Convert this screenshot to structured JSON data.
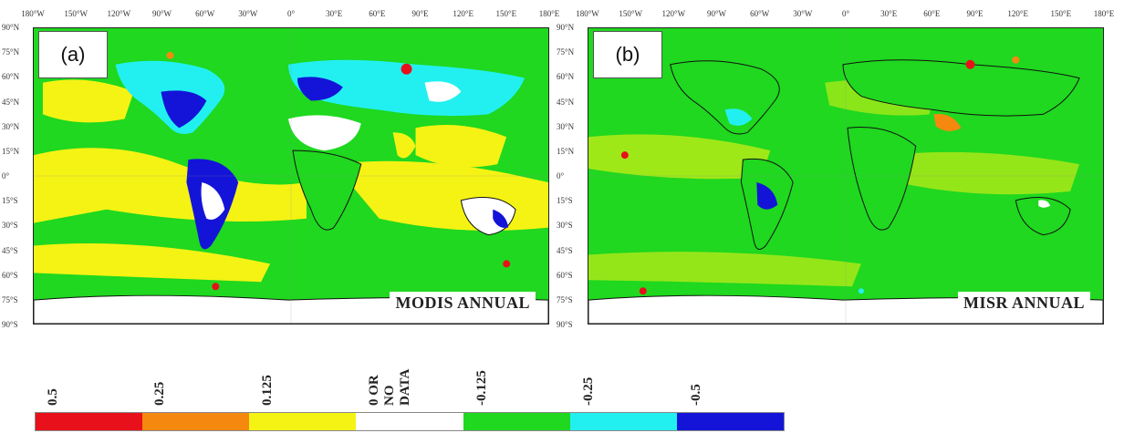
{
  "longitude_labels": [
    "180°W",
    "150°W",
    "120°W",
    "90°W",
    "60°W",
    "30°W",
    "0°",
    "30°E",
    "60°E",
    "90°E",
    "120°E",
    "150°E",
    "180°E"
  ],
  "latitude_labels": [
    "90°N",
    "75°N",
    "60°N",
    "45°N",
    "30°N",
    "15°N",
    "0°",
    "15°S",
    "30°S",
    "45°S",
    "60°S",
    "75°S",
    "90°S"
  ],
  "panels": [
    {
      "tag": "(a)",
      "title": "MODIS ANNUAL"
    },
    {
      "tag": "(b)",
      "title": "MISR ANNUAL"
    }
  ],
  "colorbar": {
    "labels": [
      "0.5",
      "0.25",
      "0.125",
      "0 OR\nNO\nDATA",
      "-0.125",
      "-0.25",
      "-0.5"
    ],
    "colors": [
      "#e8101a",
      "#f5880f",
      "#f5f314",
      "#ffffff",
      "#1fd81f",
      "#22f0f0",
      "#1414d8"
    ]
  },
  "colors": {
    "ocean_green": "#1fd81f",
    "yellow": "#f5f314",
    "orange": "#f5880f",
    "red": "#e8101a",
    "cyan": "#22f0f0",
    "blue": "#1414d8",
    "no_data": "#ffffff"
  }
}
